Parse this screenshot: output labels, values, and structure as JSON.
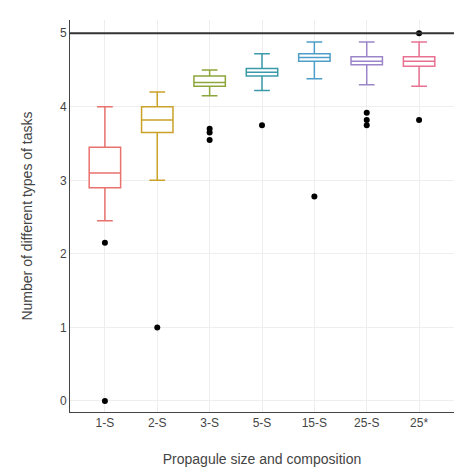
{
  "chart_data": {
    "type": "box",
    "xlabel": "Propagule size and composition",
    "ylabel": "Number of different types of tasks",
    "categories": [
      "1-S",
      "2-S",
      "3-S",
      "5-S",
      "15-S",
      "25-S",
      "25*"
    ],
    "colors": [
      "#e8726d",
      "#c9a227",
      "#8da63a",
      "#3a9aaa",
      "#4d9ec9",
      "#9b85c9",
      "#e87090"
    ],
    "boxes": [
      {
        "q1": 2.9,
        "median": 3.1,
        "q3": 3.45,
        "whisker_low": 2.45,
        "whisker_high": 4.0,
        "fliers": [
          0.0,
          2.15
        ]
      },
      {
        "q1": 3.65,
        "median": 3.82,
        "q3": 4.0,
        "whisker_low": 3.0,
        "whisker_high": 4.2,
        "fliers": [
          1.0
        ]
      },
      {
        "q1": 4.28,
        "median": 4.33,
        "q3": 4.42,
        "whisker_low": 4.15,
        "whisker_high": 4.5,
        "fliers": [
          3.55,
          3.65,
          3.7
        ]
      },
      {
        "q1": 4.42,
        "median": 4.47,
        "q3": 4.52,
        "whisker_low": 4.22,
        "whisker_high": 4.72,
        "fliers": [
          3.75
        ]
      },
      {
        "q1": 4.62,
        "median": 4.67,
        "q3": 4.72,
        "whisker_low": 4.38,
        "whisker_high": 4.88,
        "fliers": [
          2.78
        ]
      },
      {
        "q1": 4.57,
        "median": 4.62,
        "q3": 4.68,
        "whisker_low": 4.3,
        "whisker_high": 4.88,
        "fliers": [
          3.75,
          3.82,
          3.92
        ]
      },
      {
        "q1": 4.55,
        "median": 4.62,
        "q3": 4.68,
        "whisker_low": 4.28,
        "whisker_high": 4.88,
        "fliers": [
          3.82,
          5.0
        ]
      }
    ],
    "hline": {
      "y": 5.0,
      "color": "#333333"
    },
    "ylim": [
      -0.15,
      5.18
    ],
    "yticks": [
      0,
      1,
      2,
      3,
      4,
      5
    ],
    "grid": true
  }
}
